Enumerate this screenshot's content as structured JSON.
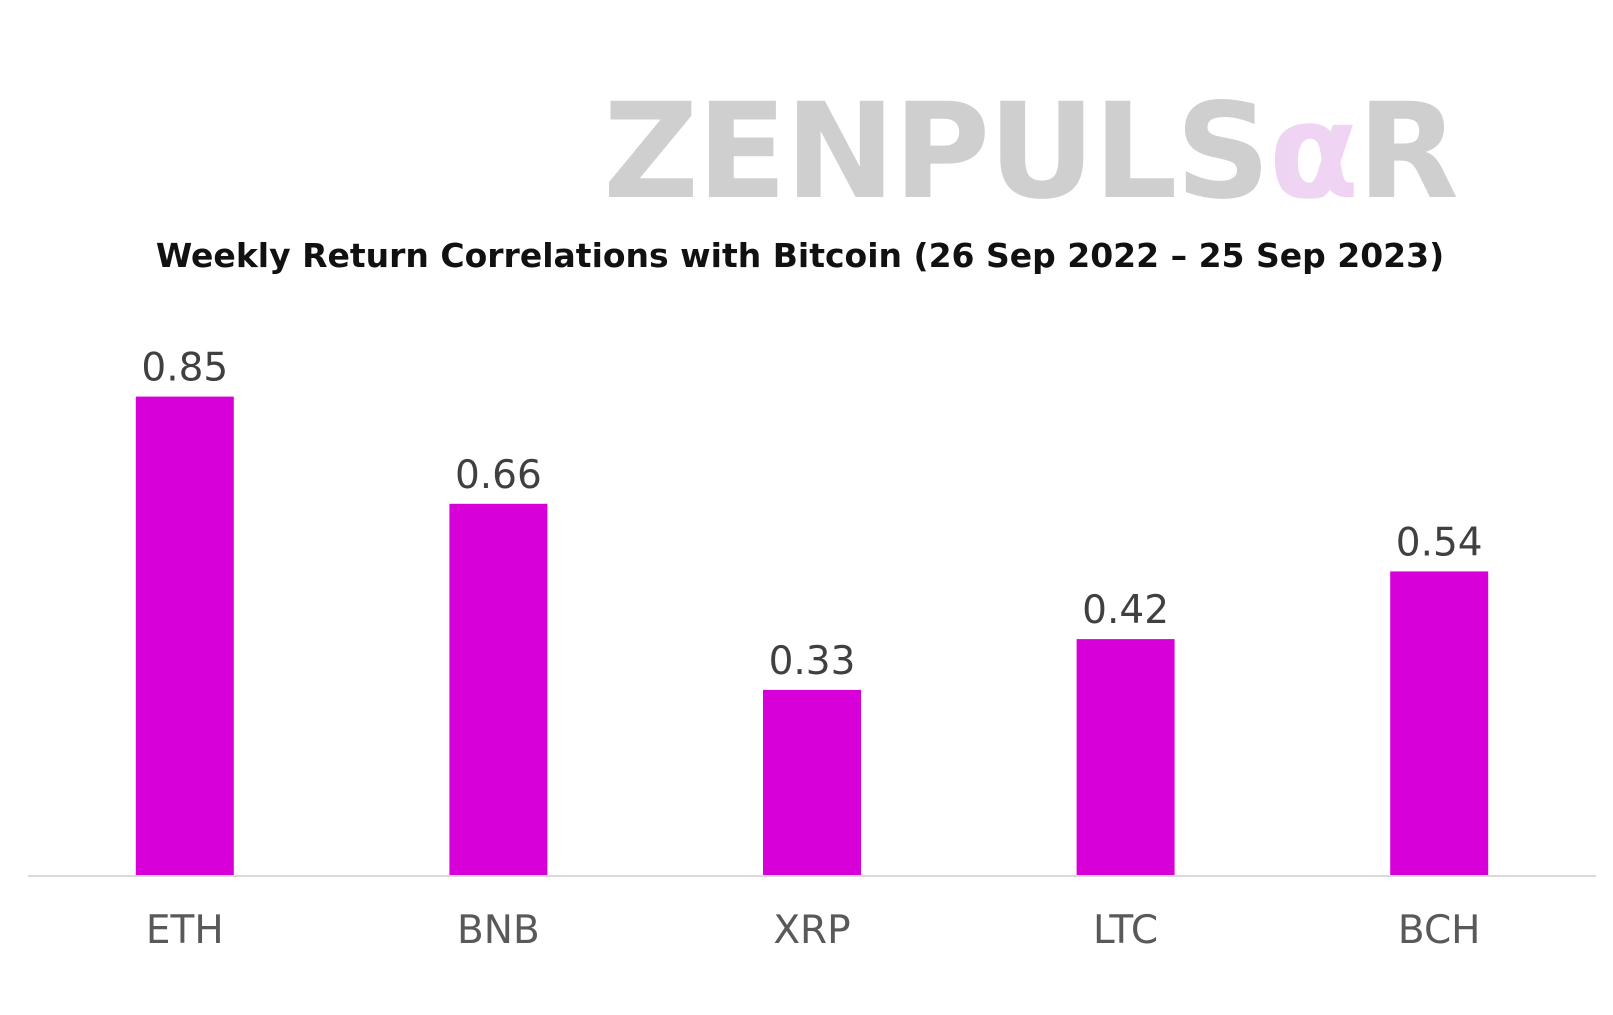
{
  "logo": {
    "text": "ZENPULSαR",
    "prefix": "ZENPULS",
    "accent": "α",
    "suffix": "R",
    "text_color": "#cfcfcf",
    "accent_colors": [
      "#d9dcf7",
      "#f4d2f2"
    ]
  },
  "chart_data": {
    "type": "bar",
    "title": "Weekly Return Correlations with Bitcoin (26 Sep 2022 – 25 Sep 2023)",
    "categories": [
      "ETH",
      "BNB",
      "XRP",
      "LTC",
      "BCH"
    ],
    "values": [
      0.85,
      0.66,
      0.33,
      0.42,
      0.54
    ],
    "value_labels": [
      "0.85",
      "0.66",
      "0.33",
      "0.42",
      "0.54"
    ],
    "xlabel": "",
    "ylabel": "",
    "ylim": [
      0,
      1
    ],
    "grid": false,
    "legend": "none",
    "bar_color": "#d800d8",
    "axis_color": "#d9d9d9"
  }
}
